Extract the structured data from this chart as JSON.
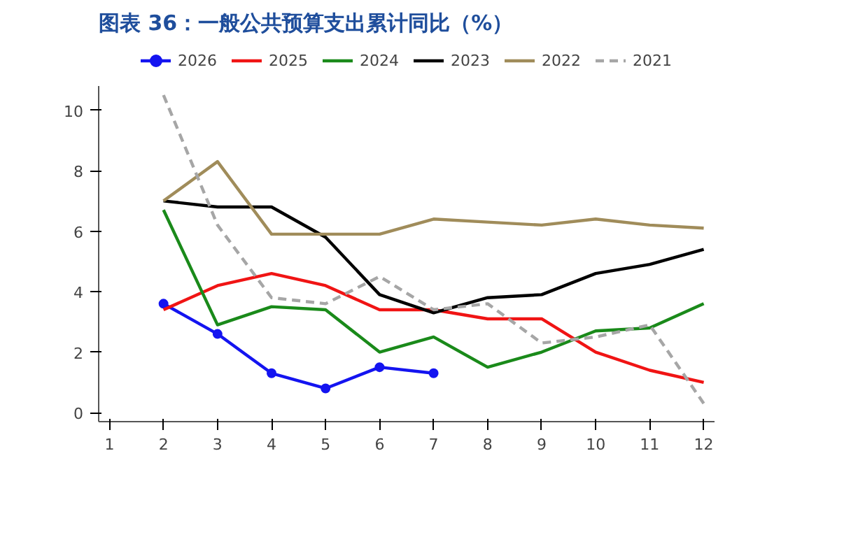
{
  "chart_data": {
    "type": "line",
    "title": "图表 36：一般公共预算支出累计同比（%）",
    "x": [
      2,
      3,
      4,
      5,
      6,
      7,
      8,
      9,
      10,
      11,
      12
    ],
    "xlim": [
      0.8,
      12.2
    ],
    "xticks": [
      1,
      2,
      3,
      4,
      5,
      6,
      7,
      8,
      9,
      10,
      11,
      12
    ],
    "ylim": [
      -0.3,
      10.8
    ],
    "yticks": [
      0,
      2,
      4,
      6,
      8,
      10
    ],
    "grid": false,
    "legend": "top",
    "line_style": "solid",
    "series": [
      {
        "name": "2026",
        "color": "#1414f0",
        "marker": "circle",
        "x": [
          2,
          3,
          4,
          5,
          6,
          7
        ],
        "values": [
          3.6,
          2.6,
          1.3,
          0.8,
          1.5,
          1.3
        ]
      },
      {
        "name": "2025",
        "color": "#f01414",
        "values": [
          3.4,
          4.2,
          4.6,
          4.2,
          3.4,
          3.4,
          3.1,
          3.1,
          2.0,
          1.4,
          1.0
        ]
      },
      {
        "name": "2024",
        "color": "#1a8a1a",
        "values": [
          6.7,
          2.9,
          3.5,
          3.4,
          2.0,
          2.5,
          1.5,
          2.0,
          2.7,
          2.8,
          3.6
        ]
      },
      {
        "name": "2023",
        "color": "#000000",
        "values": [
          7.0,
          6.8,
          6.8,
          5.8,
          3.9,
          3.3,
          3.8,
          3.9,
          4.6,
          4.9,
          5.4
        ]
      },
      {
        "name": "2022",
        "color": "#a08c5a",
        "values": [
          7.0,
          8.3,
          5.9,
          5.9,
          5.9,
          6.4,
          6.3,
          6.2,
          6.4,
          6.2,
          6.1
        ]
      },
      {
        "name": "2021",
        "color": "#a6a6a6",
        "line_style": "dashed",
        "values": [
          10.5,
          6.2,
          3.8,
          3.6,
          4.5,
          3.4,
          3.6,
          2.3,
          2.5,
          2.9,
          0.3
        ]
      }
    ]
  }
}
